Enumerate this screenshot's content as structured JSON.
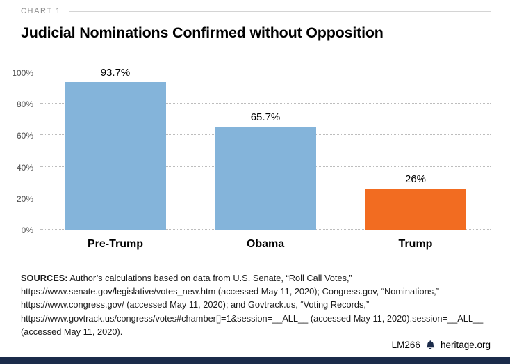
{
  "meta": {
    "kicker": "CHART 1",
    "title": "Judicial Nominations Confirmed without Opposition",
    "footer": {
      "code": "LM266",
      "brand": "heritage.org"
    }
  },
  "colors": {
    "bar_blue": "#84b4da",
    "bar_orange": "#f26c21",
    "footer_bar": "#1b2b4a"
  },
  "chart_data": {
    "type": "bar",
    "categories": [
      "Pre-Trump",
      "Obama",
      "Trump"
    ],
    "values": [
      93.7,
      65.7,
      26
    ],
    "value_labels": [
      "93.7%",
      "65.7%",
      "26%"
    ],
    "bar_colors": [
      "#84b4da",
      "#84b4da",
      "#f26c21"
    ],
    "title": "Judicial Nominations Confirmed without Opposition",
    "xlabel": "",
    "ylabel": "",
    "ylim": [
      0,
      100
    ],
    "yticks": [
      "0%",
      "20%",
      "40%",
      "60%",
      "80%",
      "100%"
    ],
    "grid": true,
    "legend": "none"
  },
  "sources": {
    "label": "SOURCES:",
    "text": " Author’s calculations based on data from U.S. Senate, “Roll Call Votes,” https://www.senate.gov/legislative/votes_new.htm (accessed May 11, 2020); Congress.gov, “Nominations,” https://www.congress.gov/ (accessed May 11, 2020); and Govtrack.us, “Voting Records,” https://www.govtrack.us/congress/votes#chamber[]=1&session=__ALL__ (accessed May 11, 2020).session=__ALL__ (accessed May 11, 2020)."
  }
}
